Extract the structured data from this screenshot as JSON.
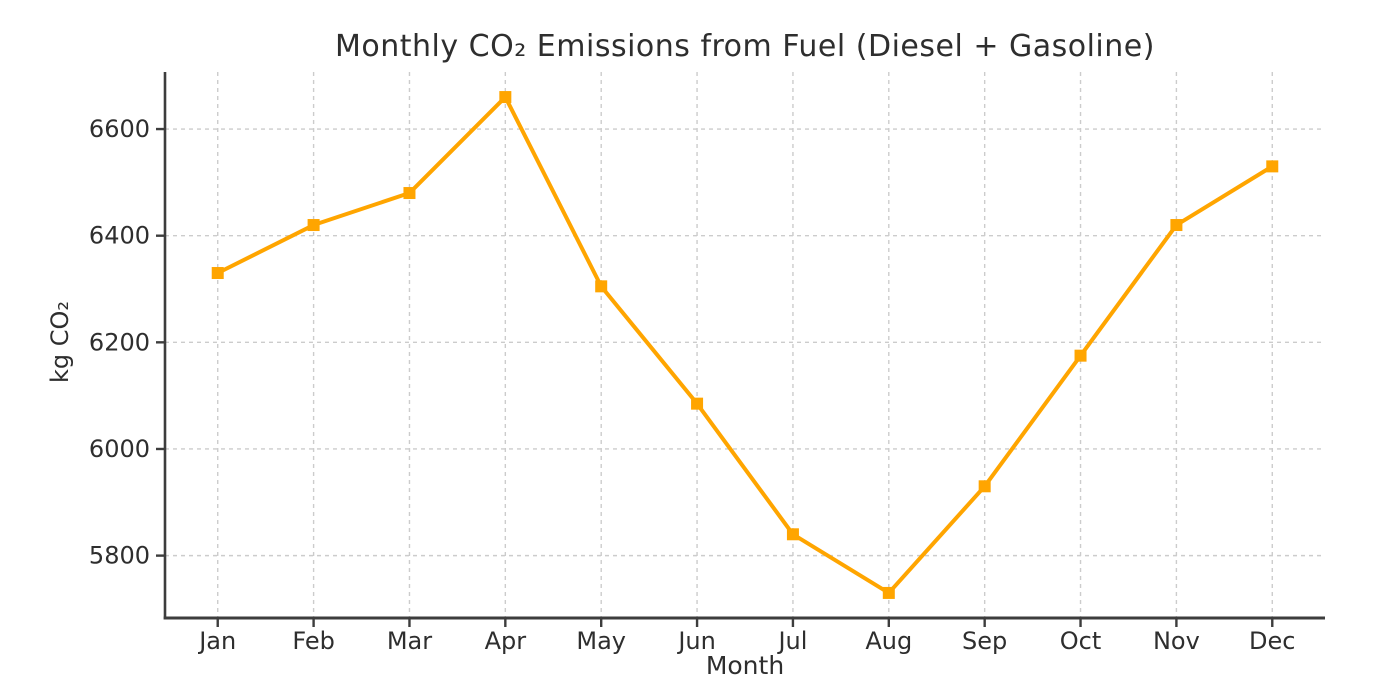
{
  "chart_data": {
    "type": "line",
    "title": "Monthly CO₂ Emissions from Fuel (Diesel + Gasoline)",
    "xlabel": "Month",
    "ylabel": "kg CO₂",
    "categories": [
      "Jan",
      "Feb",
      "Mar",
      "Apr",
      "May",
      "Jun",
      "Jul",
      "Aug",
      "Sep",
      "Oct",
      "Nov",
      "Dec"
    ],
    "values": [
      6330,
      6420,
      6480,
      6660,
      6305,
      6085,
      5840,
      5730,
      5930,
      6175,
      6420,
      6530
    ],
    "yticks": [
      5800,
      6000,
      6200,
      6400,
      6600
    ],
    "ylim": [
      5683,
      6707
    ],
    "grid": true,
    "grid_style": "dashed",
    "legend": "none",
    "line_color": "#FFA500",
    "marker": "square",
    "grid_color": "#cccccc",
    "axis_color": "#3d3d3d",
    "text_color": "#2e2e2e",
    "background_color": "#ffffff"
  }
}
